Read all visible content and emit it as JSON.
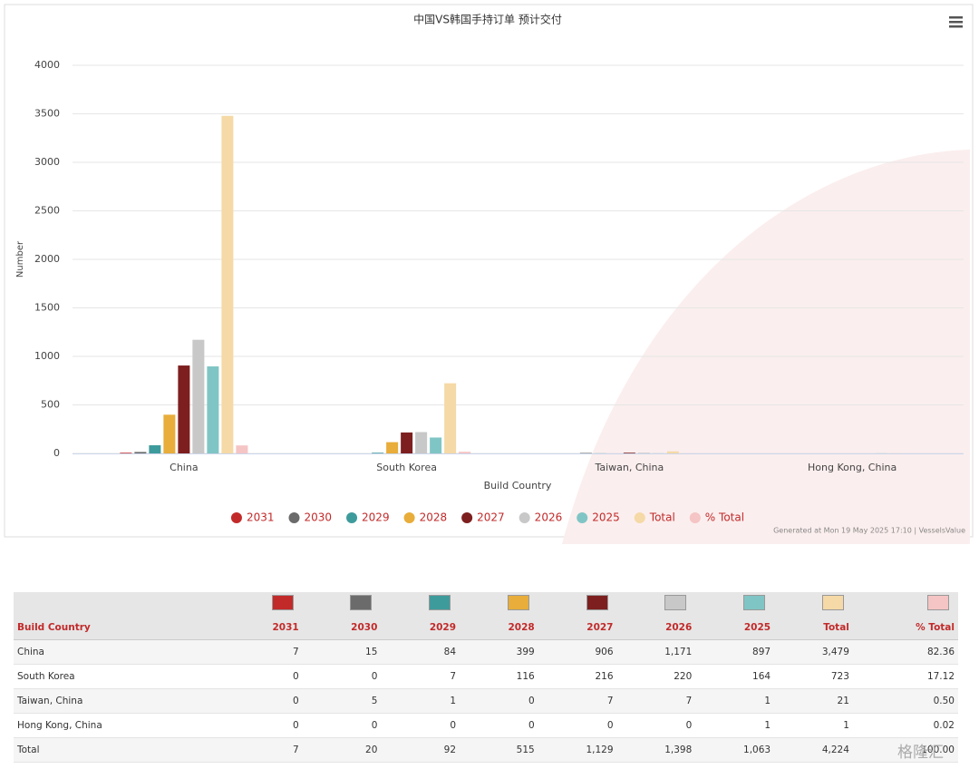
{
  "chart_data": {
    "type": "bar",
    "title": "中国VS韩国手持订单 预计交付",
    "x_label": "Build Country",
    "y_label": "Number",
    "categories": [
      "China",
      "South Korea",
      "Taiwan, China",
      "Hong Kong, China"
    ],
    "series": [
      {
        "name": "2031",
        "color": "#c22a2a",
        "values": [
          7,
          0,
          0,
          0
        ]
      },
      {
        "name": "2030",
        "color": "#6b6b6b",
        "values": [
          15,
          0,
          5,
          0
        ]
      },
      {
        "name": "2029",
        "color": "#3e9b9c",
        "values": [
          84,
          7,
          1,
          0
        ]
      },
      {
        "name": "2028",
        "color": "#e8ad3a",
        "values": [
          399,
          116,
          0,
          0
        ]
      },
      {
        "name": "2027",
        "color": "#7d1f1f",
        "values": [
          906,
          216,
          7,
          0
        ]
      },
      {
        "name": "2026",
        "color": "#c8c8c8",
        "values": [
          1171,
          220,
          7,
          0
        ]
      },
      {
        "name": "2025",
        "color": "#80c5c5",
        "values": [
          897,
          164,
          1,
          1
        ]
      },
      {
        "name": "Total",
        "color": "#f5d9a6",
        "values": [
          3479,
          723,
          21,
          1
        ]
      },
      {
        "name": "% Total",
        "color": "#f5c4c4",
        "values": [
          82.36,
          17.12,
          0.5,
          0.02
        ]
      }
    ],
    "ylim": [
      0,
      4000
    ],
    "yticks": [
      0,
      500,
      1000,
      1500,
      2000,
      2500,
      3000,
      3500,
      4000
    ],
    "grid": true,
    "legend": "bottom",
    "credit": "Generated at Mon 19 May 2025 17:10 | VesselsValue"
  },
  "table": {
    "columns": [
      "Build Country",
      "2031",
      "2030",
      "2029",
      "2028",
      "2027",
      "2026",
      "2025",
      "Total",
      "% Total"
    ],
    "rows": [
      [
        "China",
        "7",
        "15",
        "84",
        "399",
        "906",
        "1,171",
        "897",
        "3,479",
        "82.36"
      ],
      [
        "South Korea",
        "0",
        "0",
        "7",
        "116",
        "216",
        "220",
        "164",
        "723",
        "17.12"
      ],
      [
        "Taiwan, China",
        "0",
        "5",
        "1",
        "0",
        "7",
        "7",
        "1",
        "21",
        "0.50"
      ],
      [
        "Hong Kong, China",
        "0",
        "0",
        "0",
        "0",
        "0",
        "0",
        "1",
        "1",
        "0.02"
      ],
      [
        "Total",
        "7",
        "20",
        "92",
        "515",
        "1,129",
        "1,398",
        "1,063",
        "4,224",
        "100.00"
      ]
    ]
  },
  "watermark": "格隆汇"
}
